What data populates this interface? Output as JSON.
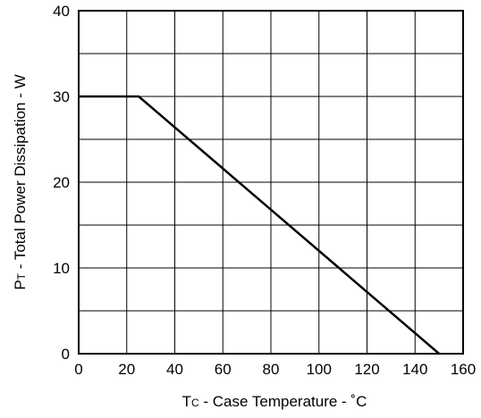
{
  "chart_data": {
    "type": "line",
    "xlabel": {
      "main": "T",
      "sub": "C",
      "rest": " - Case Temperature - ˚C"
    },
    "ylabel": {
      "main": "P",
      "sub": "T",
      "rest": " - Total Power Dissipation - W"
    },
    "xlim": [
      0,
      160
    ],
    "ylim": [
      0,
      40
    ],
    "x_ticks": [
      0,
      20,
      40,
      60,
      80,
      100,
      120,
      140,
      160
    ],
    "y_ticks": [
      0,
      10,
      20,
      30,
      40
    ],
    "x_grid": [
      0,
      20,
      40,
      60,
      80,
      100,
      120,
      140,
      160
    ],
    "y_grid": [
      0,
      5,
      10,
      15,
      20,
      25,
      30,
      35,
      40
    ],
    "grid": true,
    "series": [
      {
        "x": [
          0,
          25,
          150
        ],
        "y": [
          30,
          30,
          0
        ]
      }
    ]
  }
}
